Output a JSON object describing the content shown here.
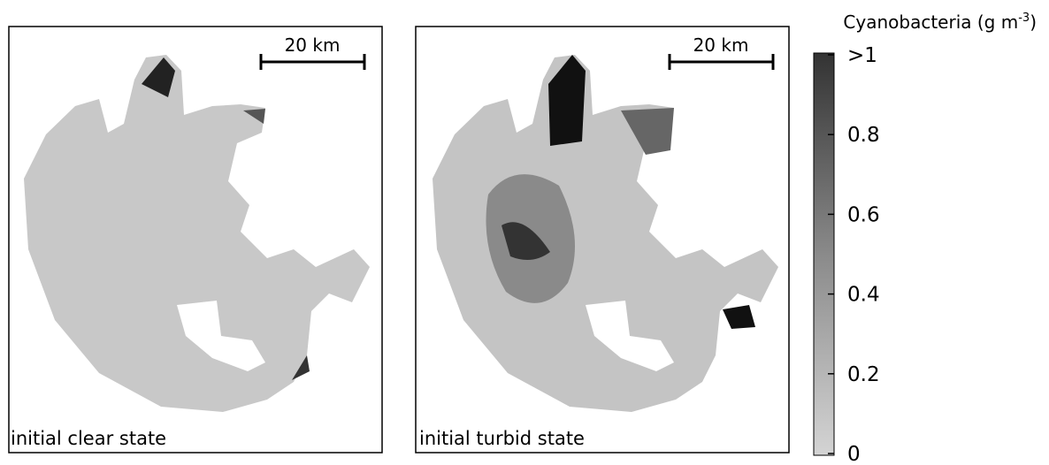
{
  "panels": [
    {
      "label": "initial clear state",
      "scale_bar": "20 km"
    },
    {
      "label": "initial turbid state",
      "scale_bar": "20 km"
    }
  ],
  "colorbar": {
    "title": "Cyanobacteria (g m",
    "title_exponent": "-3",
    "title_end": ")",
    "ticks": [
      {
        "value": 1,
        "label": ">1"
      },
      0.8,
      0.6,
      0.4,
      0.2,
      0
    ]
  }
}
